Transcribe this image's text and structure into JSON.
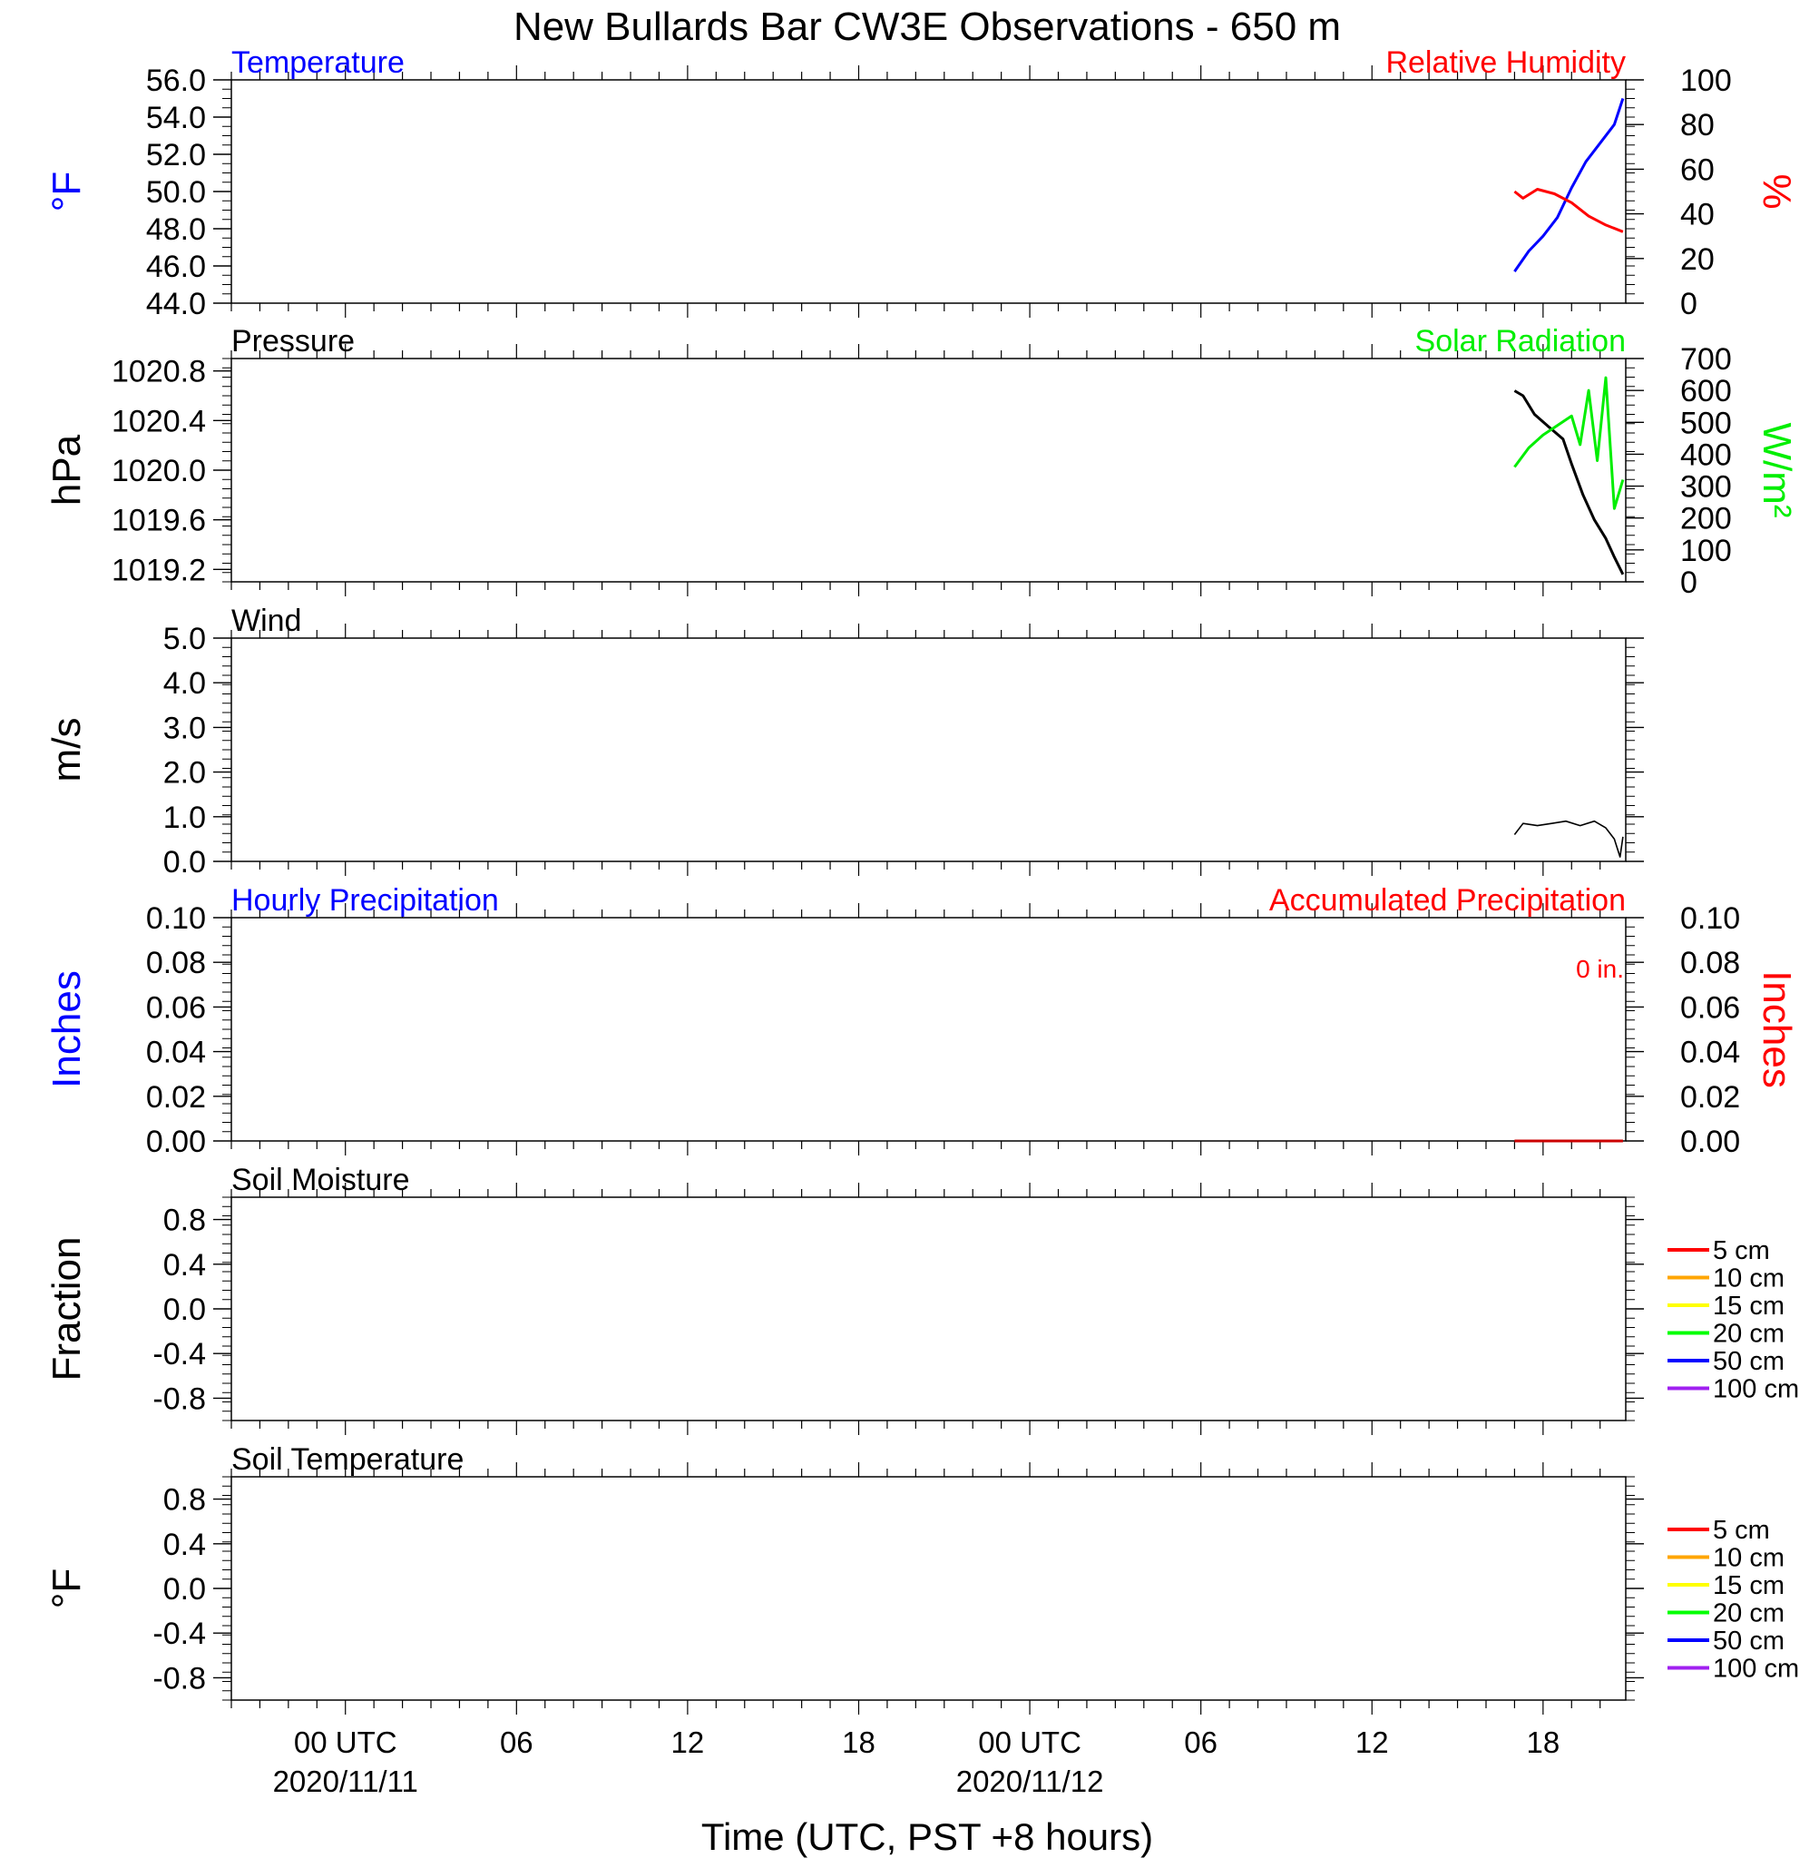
{
  "title": "New Bullards Bar CW3E Observations - 650 m",
  "xlabel": "Time (UTC, PST +8 hours)",
  "x_ticks": [
    {
      "hour": 0,
      "label": "00 UTC",
      "date": "2020/11/11"
    },
    {
      "hour": 6,
      "label": "06",
      "date": ""
    },
    {
      "hour": 12,
      "label": "12",
      "date": ""
    },
    {
      "hour": 18,
      "label": "18",
      "date": ""
    },
    {
      "hour": 24,
      "label": "00 UTC",
      "date": "2020/11/12"
    },
    {
      "hour": 30,
      "label": "06",
      "date": ""
    },
    {
      "hour": 36,
      "label": "12",
      "date": ""
    },
    {
      "hour": 42,
      "label": "18",
      "date": ""
    }
  ],
  "chart_data": [
    {
      "type": "line",
      "left_title": "Temperature",
      "right_title": "Relative Humidity",
      "ylabel_left": "°F",
      "ylabel_right": "%",
      "ylim_left": [
        44.0,
        56.0
      ],
      "ylim_right": [
        0,
        100
      ],
      "yticks_left": [
        "56.0",
        "54.0",
        "52.0",
        "50.0",
        "48.0",
        "46.0",
        "44.0"
      ],
      "yticks_right": [
        "100",
        "80",
        "60",
        "40",
        "20",
        "0"
      ],
      "colors": {
        "left": "#0000ff",
        "right": "#ff0000"
      },
      "series": [
        {
          "axis": "left",
          "color": "#0000ff",
          "x": [
            41.0,
            41.5,
            42.0,
            42.5,
            43.0,
            43.5,
            44.0,
            44.5,
            44.8
          ],
          "y": [
            45.7,
            46.8,
            47.6,
            48.6,
            50.2,
            51.6,
            52.6,
            53.6,
            55.0
          ]
        },
        {
          "axis": "right",
          "color": "#ff0000",
          "x": [
            41.0,
            41.3,
            41.8,
            42.4,
            43.0,
            43.6,
            44.2,
            44.8
          ],
          "y": [
            50,
            47,
            51,
            49,
            45,
            39,
            35,
            32
          ]
        }
      ]
    },
    {
      "type": "line",
      "left_title": "Pressure",
      "right_title": "Solar Radiation",
      "ylabel_left": "hPa",
      "ylabel_right": "W/m²",
      "ylim_left": [
        1019.1,
        1020.9
      ],
      "ylim_right": [
        0,
        700
      ],
      "yticks_left": [
        "1020.8",
        "1020.4",
        "1020.0",
        "1019.6",
        "1019.2"
      ],
      "yticks_right": [
        "700",
        "600",
        "500",
        "400",
        "300",
        "200",
        "100",
        "0"
      ],
      "colors": {
        "left": "#000000",
        "right": "#00ee00"
      },
      "series": [
        {
          "axis": "left",
          "color": "#000000",
          "x": [
            41.0,
            41.3,
            41.7,
            42.2,
            42.7,
            43.0,
            43.4,
            43.8,
            44.2,
            44.5,
            44.8
          ],
          "y": [
            1020.64,
            1020.6,
            1020.45,
            1020.35,
            1020.25,
            1020.05,
            1019.8,
            1019.6,
            1019.45,
            1019.3,
            1019.16
          ]
        },
        {
          "axis": "right",
          "color": "#00ee00",
          "x": [
            41.0,
            41.5,
            42.0,
            42.5,
            43.0,
            43.3,
            43.6,
            43.9,
            44.2,
            44.5,
            44.8
          ],
          "y": [
            360,
            420,
            460,
            490,
            520,
            430,
            600,
            380,
            640,
            230,
            320
          ]
        }
      ]
    },
    {
      "type": "line",
      "left_title": "Wind",
      "right_title": "",
      "ylabel_left": "m/s",
      "ylabel_right": "",
      "ylim_left": [
        0.0,
        5.0
      ],
      "yticks_left": [
        "5.0",
        "4.0",
        "3.0",
        "2.0",
        "1.0",
        "0.0"
      ],
      "series": [
        {
          "axis": "left",
          "color": "#000000",
          "x": [
            41.0,
            41.3,
            41.8,
            42.3,
            42.8,
            43.3,
            43.8,
            44.2,
            44.5,
            44.7,
            44.8
          ],
          "y": [
            0.6,
            0.85,
            0.8,
            0.85,
            0.9,
            0.8,
            0.9,
            0.75,
            0.5,
            0.1,
            0.55
          ]
        }
      ]
    },
    {
      "type": "line",
      "left_title": "Hourly Precipitation",
      "right_title": "Accumulated Precipitation",
      "annotation": "0 in.",
      "ylabel_left": "Inches",
      "ylabel_right": "Inches",
      "ylim_left": [
        0.0,
        0.1
      ],
      "ylim_right": [
        0.0,
        0.1
      ],
      "yticks_left": [
        "0.10",
        "0.08",
        "0.06",
        "0.04",
        "0.02",
        "0.00"
      ],
      "yticks_right": [
        "0.10",
        "0.08",
        "0.06",
        "0.04",
        "0.02",
        "0.00"
      ],
      "colors": {
        "left": "#0000ff",
        "right": "#ff0000"
      },
      "series": [
        {
          "axis": "right",
          "color": "#cc0000",
          "x": [
            41.0,
            44.8
          ],
          "y": [
            0.0,
            0.0
          ]
        }
      ]
    },
    {
      "type": "line",
      "left_title": "Soil Moisture",
      "right_title": "",
      "ylabel_left": "Fraction",
      "ylabel_right": "",
      "ylim_left": [
        -1.0,
        1.0
      ],
      "yticks_left": [
        "0.8",
        "0.4",
        "0.0",
        "-0.4",
        "-0.8"
      ],
      "legend": [
        {
          "label": "5 cm",
          "color": "#ff0000"
        },
        {
          "label": "10 cm",
          "color": "#ffa500"
        },
        {
          "label": "15 cm",
          "color": "#ffff00"
        },
        {
          "label": "20 cm",
          "color": "#00ff00"
        },
        {
          "label": "50 cm",
          "color": "#0000ff"
        },
        {
          "label": "100 cm",
          "color": "#a020f0"
        }
      ],
      "series": []
    },
    {
      "type": "line",
      "left_title": "Soil Temperature",
      "right_title": "",
      "ylabel_left": "°F",
      "ylabel_right": "",
      "ylim_left": [
        -1.0,
        1.0
      ],
      "yticks_left": [
        "0.8",
        "0.4",
        "0.0",
        "-0.4",
        "-0.8"
      ],
      "legend": [
        {
          "label": "5 cm",
          "color": "#ff0000"
        },
        {
          "label": "10 cm",
          "color": "#ffa500"
        },
        {
          "label": "15 cm",
          "color": "#ffff00"
        },
        {
          "label": "20 cm",
          "color": "#00ff00"
        },
        {
          "label": "50 cm",
          "color": "#0000ff"
        },
        {
          "label": "100 cm",
          "color": "#a020f0"
        }
      ],
      "series": []
    }
  ]
}
